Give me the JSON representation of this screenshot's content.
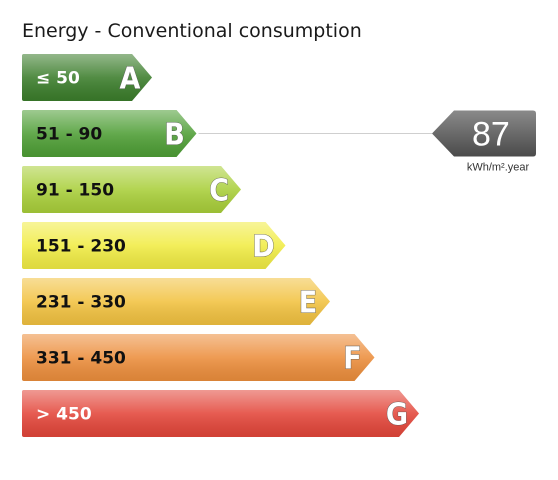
{
  "chart_data": {
    "type": "bar",
    "title": "Energy - Conventional consumption",
    "categories": [
      "A",
      "B",
      "C",
      "D",
      "E",
      "F",
      "G"
    ],
    "ranges": [
      "≤ 50",
      "51 - 90",
      "91 - 150",
      "151 - 230",
      "231 - 330",
      "331 - 450",
      "> 450"
    ],
    "colors": [
      "#3b7d2b",
      "#4e9e35",
      "#a9cf3a",
      "#f1ec44",
      "#f2c240",
      "#ec8e3c",
      "#e3463a"
    ],
    "label_colors": [
      "#ffffff",
      "#111111",
      "#111111",
      "#111111",
      "#111111",
      "#111111",
      "#ffffff"
    ],
    "current": {
      "value": "87",
      "grade": "B",
      "unit": "kWh/m².year"
    },
    "indicator_color": "#6e6e6e"
  }
}
